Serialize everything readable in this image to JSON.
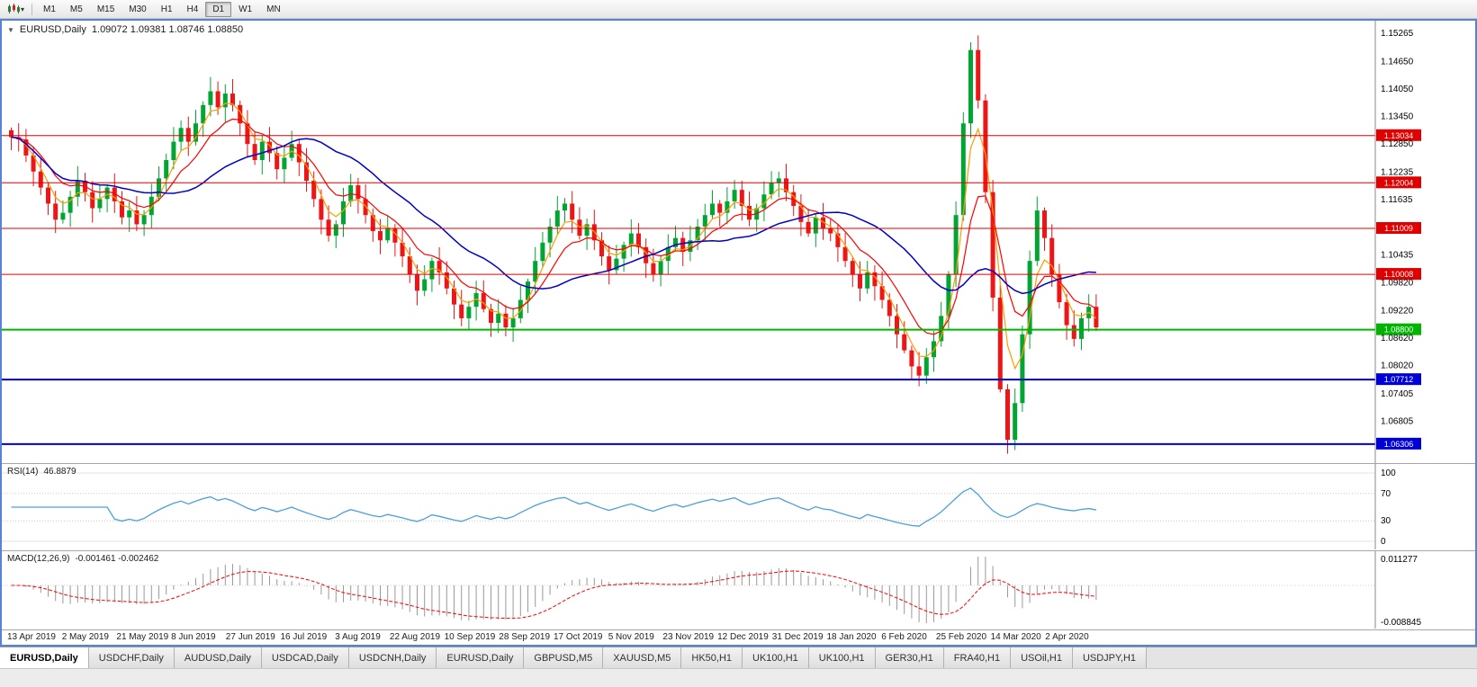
{
  "toolbar": {
    "timeframes": [
      "M1",
      "M5",
      "M15",
      "M30",
      "H1",
      "H4",
      "D1",
      "W1",
      "MN"
    ],
    "active_timeframe": "D1"
  },
  "icons": {
    "chart_type": "candlestick-chart-icon",
    "dropdown_caret": "▾",
    "collapse_triangle": "▼"
  },
  "chart": {
    "symbol_title": "EURUSD,Daily",
    "ohlc_values": "1.09072 1.09381 1.08746 1.08850"
  },
  "indicators": {
    "rsi": {
      "name": "RSI(14)",
      "value": "46.8879",
      "axis_ticks": [
        "100",
        "70",
        "30",
        "0"
      ],
      "dotted_levels": [
        70,
        30
      ],
      "line_color": "#4aa0dc"
    },
    "macd": {
      "name": "MACD(12,26,9)",
      "values": "-0.001461 -0.002462",
      "axis_top": "0.011277",
      "axis_bottom": "-0.008845",
      "histogram_color": "#9a9a9a",
      "signal_color": "#ff0000"
    }
  },
  "price_axis": {
    "ticks": [
      "1.15265",
      "1.14650",
      "1.14050",
      "1.13450",
      "1.12850",
      "1.12235",
      "1.11635",
      "1.10435",
      "1.09820",
      "1.09220",
      "1.08620",
      "1.08020",
      "1.07405",
      "1.06805"
    ]
  },
  "date_axis": {
    "labels": [
      "13 Apr 2019",
      "2 May 2019",
      "21 May 2019",
      "8 Jun 2019",
      "27 Jun 2019",
      "16 Jul 2019",
      "3 Aug 2019",
      "22 Aug 2019",
      "10 Sep 2019",
      "28 Sep 2019",
      "17 Oct 2019",
      "5 Nov 2019",
      "23 Nov 2019",
      "12 Dec 2019",
      "31 Dec 2019",
      "18 Jan 2020",
      "6 Feb 2020",
      "25 Feb 2020",
      "14 Mar 2020",
      "2 Apr 2020"
    ]
  },
  "tabs": {
    "active_index": 0,
    "items": [
      "EURUSD,Daily",
      "USDCHF,Daily",
      "AUDUSD,Daily",
      "USDCAD,Daily",
      "USDCNH,Daily",
      "EURUSD,Daily",
      "GBPUSD,M5",
      "XAUUSD,M5",
      "HK50,H1",
      "UK100,H1",
      "UK100,H1",
      "GER30,H1",
      "FRA40,H1",
      "USOil,H1",
      "USDJPY,H1"
    ],
    "active_label": "EURUSD,Daily"
  },
  "chart_data": {
    "type": "candlestick",
    "symbol": "EURUSD",
    "timeframe": "Daily",
    "title": "EURUSD,Daily",
    "ohlc_display": "1.09072 1.09381 1.08746 1.08850",
    "ylim": [
      1.06205,
      1.15265
    ],
    "x_tick_labels": [
      "13 Apr 2019",
      "2 May 2019",
      "21 May 2019",
      "8 Jun 2019",
      "27 Jun 2019",
      "16 Jul 2019",
      "3 Aug 2019",
      "22 Aug 2019",
      "10 Sep 2019",
      "28 Sep 2019",
      "17 Oct 2019",
      "5 Nov 2019",
      "23 Nov 2019",
      "12 Dec 2019",
      "31 Dec 2019",
      "18 Jan 2020",
      "6 Feb 2020",
      "25 Feb 2020",
      "14 Mar 2020",
      "2 Apr 2020"
    ],
    "closes": [
      1.13,
      1.1295,
      1.126,
      1.1225,
      1.119,
      1.1155,
      1.112,
      1.1135,
      1.117,
      1.1205,
      1.118,
      1.1145,
      1.1165,
      1.119,
      1.116,
      1.1125,
      1.114,
      1.111,
      1.113,
      1.117,
      1.121,
      1.125,
      1.129,
      1.132,
      1.129,
      1.133,
      1.137,
      1.14,
      1.1365,
      1.1395,
      1.137,
      1.133,
      1.1285,
      1.125,
      1.129,
      1.1265,
      1.123,
      1.1255,
      1.1285,
      1.1245,
      1.1205,
      1.1165,
      1.112,
      1.1085,
      1.111,
      1.116,
      1.1195,
      1.1165,
      1.113,
      1.1095,
      1.1075,
      1.11,
      1.107,
      1.104,
      1.1,
      1.0965,
      1.099,
      1.103,
      1.1005,
      1.097,
      1.0935,
      1.0905,
      1.093,
      1.096,
      1.0925,
      1.0895,
      1.0915,
      1.0885,
      1.0905,
      1.0945,
      1.0985,
      1.103,
      1.107,
      1.1105,
      1.114,
      1.1155,
      1.112,
      1.1085,
      1.111,
      1.1075,
      1.104,
      1.101,
      1.1035,
      1.1065,
      1.109,
      1.106,
      1.1025,
      1.1,
      1.103,
      1.106,
      1.108,
      1.105,
      1.1075,
      1.1105,
      1.113,
      1.1155,
      1.1135,
      1.116,
      1.1185,
      1.115,
      1.112,
      1.1145,
      1.1175,
      1.12,
      1.121,
      1.118,
      1.115,
      1.1115,
      1.109,
      1.1125,
      1.11,
      1.109,
      1.106,
      1.103,
      1.1,
      1.097,
      1.1005,
      1.0975,
      1.0945,
      1.091,
      1.087,
      1.0835,
      1.08,
      1.078,
      1.082,
      1.0855,
      1.091,
      1.1,
      1.113,
      1.133,
      1.149,
      1.138,
      1.118,
      1.095,
      1.075,
      1.064,
      1.072,
      1.087,
      1.103,
      1.114,
      1.108,
      1.1,
      1.094,
      1.089,
      1.086,
      1.0905,
      1.093,
      1.0885
    ],
    "up_color": "#00a532",
    "down_color": "#ed1515",
    "moving_averages": [
      {
        "period": 4,
        "color": "#ff9c00"
      },
      {
        "period": 9,
        "color": "#ff0000"
      },
      {
        "period": 21,
        "color": "#0000c8"
      }
    ],
    "levels": [
      {
        "price": 1.13034,
        "label": "1.13034",
        "color": "#e00000",
        "width": 1
      },
      {
        "price": 1.12004,
        "label": "1.12004",
        "color": "#e00000",
        "width": 1
      },
      {
        "price": 1.11009,
        "label": "1.11009",
        "color": "#e00000",
        "width": 1
      },
      {
        "price": 1.10008,
        "label": "1.10008",
        "color": "#e00000",
        "width": 1
      },
      {
        "price": 1.088,
        "label": "1.08800",
        "color": "#00b400",
        "width": 2
      },
      {
        "price": 1.07712,
        "label": "1.07712",
        "color": "#0000d8",
        "width": 2
      },
      {
        "price": 1.06306,
        "label": "1.06306",
        "color": "#0000d8",
        "width": 2
      }
    ],
    "rsi": {
      "period": 14,
      "last_value": 46.8879,
      "axis": [
        100,
        70,
        30,
        0
      ]
    },
    "macd": {
      "fast": 12,
      "slow": 26,
      "signal": 9,
      "last_values": [
        -0.001461,
        -0.002462
      ],
      "axis_top": 0.011277,
      "axis_bottom": -0.008845
    }
  }
}
